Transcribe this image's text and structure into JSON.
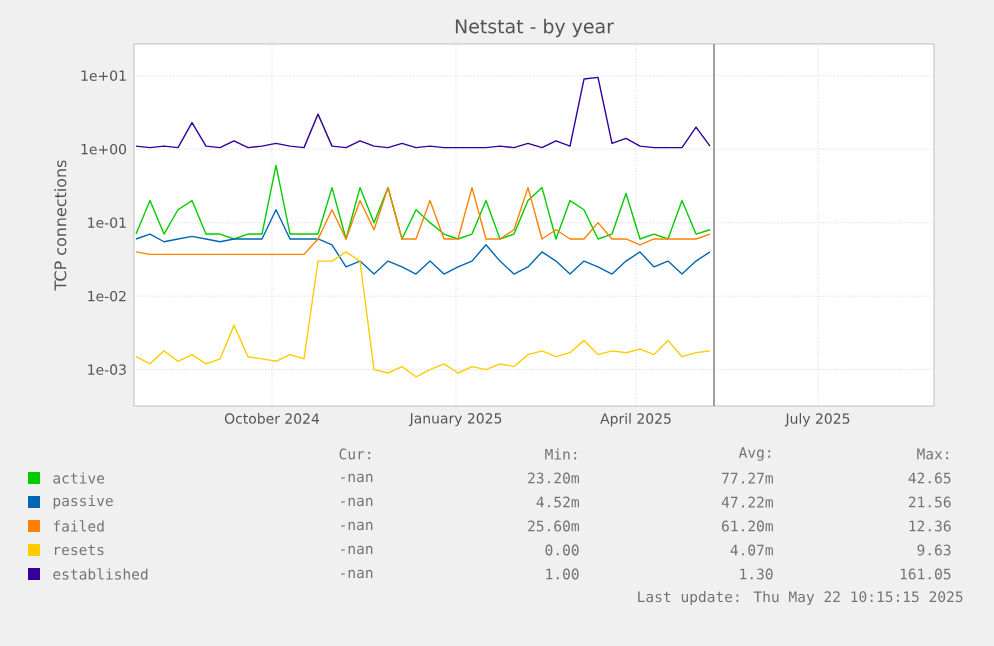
{
  "chart_data": {
    "type": "line",
    "title": "Netstat - by year",
    "ylabel": "TCP connections",
    "x": [
      "2024-07-25",
      "2024-08-01",
      "2024-08-08",
      "2024-08-15",
      "2024-08-22",
      "2024-08-29",
      "2024-09-05",
      "2024-09-12",
      "2024-09-19",
      "2024-09-26",
      "2024-10-03",
      "2024-10-10",
      "2024-10-17",
      "2024-10-24",
      "2024-10-31",
      "2024-11-07",
      "2024-11-14",
      "2024-11-21",
      "2024-11-28",
      "2024-12-05",
      "2024-12-12",
      "2024-12-19",
      "2024-12-26",
      "2025-01-02",
      "2025-01-09",
      "2025-01-16",
      "2025-01-23",
      "2025-01-30",
      "2025-02-06",
      "2025-02-13",
      "2025-02-20",
      "2025-02-27",
      "2025-03-06",
      "2025-03-13",
      "2025-03-20",
      "2025-03-27",
      "2025-04-03",
      "2025-04-10",
      "2025-04-17",
      "2025-04-24",
      "2025-05-01",
      "2025-05-08"
    ],
    "series": [
      {
        "name": "active",
        "color": "#00cc00",
        "values": [
          0.07,
          0.2,
          0.07,
          0.15,
          0.2,
          0.07,
          0.07,
          0.06,
          0.07,
          0.07,
          0.6,
          0.07,
          0.07,
          0.07,
          0.3,
          0.06,
          0.3,
          0.1,
          0.3,
          0.06,
          0.15,
          0.1,
          0.07,
          0.06,
          0.07,
          0.2,
          0.06,
          0.07,
          0.2,
          0.3,
          0.06,
          0.2,
          0.15,
          0.06,
          0.07,
          0.25,
          0.06,
          0.07,
          0.06,
          0.2,
          0.07,
          0.08
        ]
      },
      {
        "name": "passive",
        "color": "#0066b3",
        "values": [
          0.06,
          0.07,
          0.055,
          0.06,
          0.065,
          0.06,
          0.055,
          0.06,
          0.06,
          0.06,
          0.15,
          0.06,
          0.06,
          0.06,
          0.05,
          0.025,
          0.03,
          0.02,
          0.03,
          0.025,
          0.02,
          0.03,
          0.02,
          0.025,
          0.03,
          0.05,
          0.03,
          0.02,
          0.025,
          0.04,
          0.03,
          0.02,
          0.03,
          0.025,
          0.02,
          0.03,
          0.04,
          0.025,
          0.03,
          0.02,
          0.03,
          0.04
        ]
      },
      {
        "name": "failed",
        "color": "#ff8000",
        "values": [
          0.04,
          0.037,
          0.037,
          0.037,
          0.037,
          0.037,
          0.037,
          0.037,
          0.037,
          0.037,
          0.037,
          0.037,
          0.037,
          0.06,
          0.15,
          0.06,
          0.2,
          0.08,
          0.3,
          0.06,
          0.06,
          0.2,
          0.06,
          0.06,
          0.3,
          0.06,
          0.06,
          0.08,
          0.3,
          0.06,
          0.08,
          0.06,
          0.06,
          0.1,
          0.06,
          0.06,
          0.05,
          0.06,
          0.06,
          0.06,
          0.06,
          0.07
        ]
      },
      {
        "name": "resets",
        "color": "#ffcc00",
        "values": [
          0.0015,
          0.0012,
          0.0018,
          0.0013,
          0.0016,
          0.0012,
          0.0014,
          0.004,
          0.0015,
          0.0014,
          0.0013,
          0.0016,
          0.0014,
          0.03,
          0.03,
          0.04,
          0.03,
          0.001,
          0.0009,
          0.0011,
          0.0008,
          0.001,
          0.0012,
          0.0009,
          0.0011,
          0.001,
          0.0012,
          0.0011,
          0.0016,
          0.0018,
          0.0015,
          0.0017,
          0.0025,
          0.0016,
          0.0018,
          0.0017,
          0.0019,
          0.0016,
          0.0025,
          0.0015,
          0.0017,
          0.0018
        ]
      },
      {
        "name": "established",
        "color": "#330099",
        "values": [
          1.1,
          1.05,
          1.1,
          1.05,
          2.3,
          1.1,
          1.05,
          1.3,
          1.05,
          1.1,
          1.2,
          1.1,
          1.05,
          3.0,
          1.1,
          1.05,
          1.3,
          1.1,
          1.05,
          1.2,
          1.05,
          1.1,
          1.05,
          1.05,
          1.05,
          1.05,
          1.1,
          1.05,
          1.2,
          1.05,
          1.3,
          1.1,
          9.0,
          9.5,
          1.2,
          1.4,
          1.1,
          1.05,
          1.05,
          1.05,
          2.0,
          1.1
        ]
      }
    ],
    "xlim": [
      "2024-07-24",
      "2025-08-28"
    ],
    "xticks": [
      {
        "value": "2024-10-01",
        "label": "October 2024"
      },
      {
        "value": "2025-01-01",
        "label": "January 2025"
      },
      {
        "value": "2025-04-01",
        "label": "April 2025"
      },
      {
        "value": "2025-07-01",
        "label": "July 2025"
      }
    ],
    "ylim": [
      0.00032,
      27
    ],
    "yticks": [
      {
        "value": 0.001,
        "label": "1e-03"
      },
      {
        "value": 0.01,
        "label": "1e-02"
      },
      {
        "value": 0.1,
        "label": "1e-01"
      },
      {
        "value": 1,
        "label": "1e+00"
      },
      {
        "value": 10,
        "label": "1e+01"
      }
    ],
    "log": "y",
    "grid": true,
    "legend": "bottom",
    "marker": "none",
    "line_style": "solid",
    "ref_lines": [
      {
        "axis": "x",
        "value": "2025-05-10",
        "color": "#888888"
      }
    ],
    "annotations": [
      "Cur:",
      "Min:",
      "Avg:",
      "Max:",
      "-nan",
      "23.20m",
      "77.27m",
      "42.65",
      "-nan",
      "4.52m",
      "47.22m",
      "21.56",
      "-nan",
      "25.60m",
      "61.20m",
      "12.36",
      "-nan",
      "0.00",
      "4.07m",
      "9.63",
      "-nan",
      "1.00",
      "1.30",
      "161.05",
      "Last update: Thu May 22 10:15:15 2025"
    ]
  }
}
